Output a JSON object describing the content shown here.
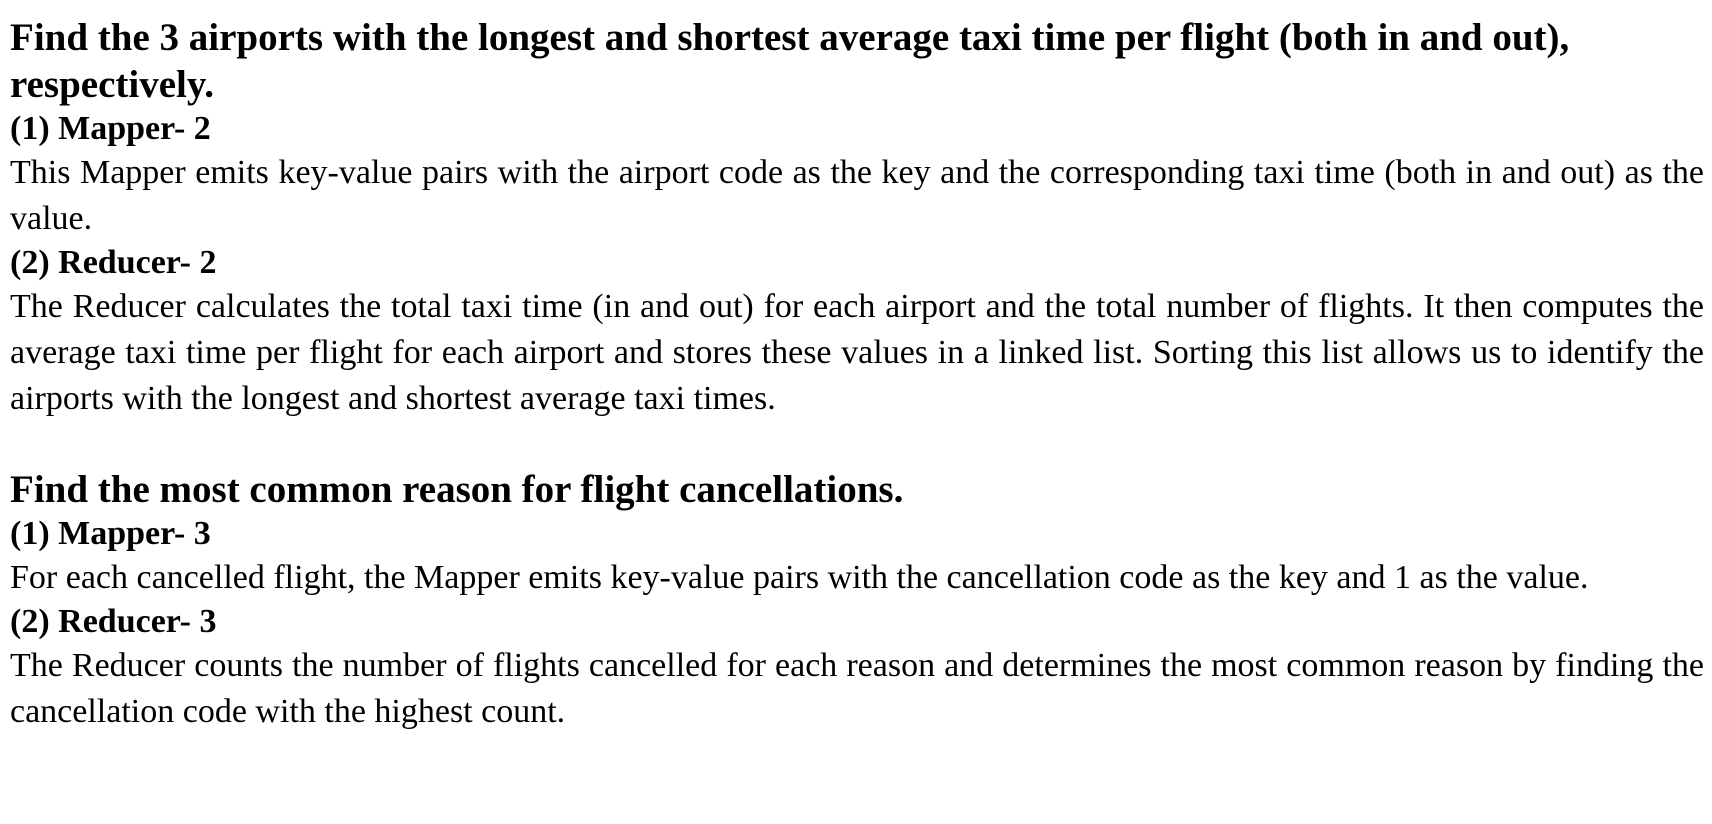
{
  "sections": [
    {
      "heading": "Find the 3 airports with the longest and shortest average taxi time per flight (both in and out), respectively.",
      "mapper_title": "(1) Mapper- 2",
      "mapper_text": "This Mapper emits key-value pairs with the airport code as the key and the corresponding taxi time (both in and out) as the value.",
      "reducer_title": "(2) Reducer- 2",
      "reducer_text": "The Reducer calculates the total taxi time (in and out) for each airport and the total number of flights. It then computes the average taxi time per flight for each airport and stores these values in a linked list. Sorting this list allows us to identify the airports with the longest and shortest average taxi times."
    },
    {
      "heading": "Find the most common reason for flight cancellations.",
      "mapper_title": "(1) Mapper- 3",
      "mapper_text": "For each cancelled flight, the Mapper emits key-value pairs with the cancellation code as the key and 1 as the value.",
      "reducer_title": "(2) Reducer- 3",
      "reducer_text": "The Reducer counts the number of flights cancelled for each reason and determines the most common reason by finding the cancellation code with the highest count."
    }
  ]
}
